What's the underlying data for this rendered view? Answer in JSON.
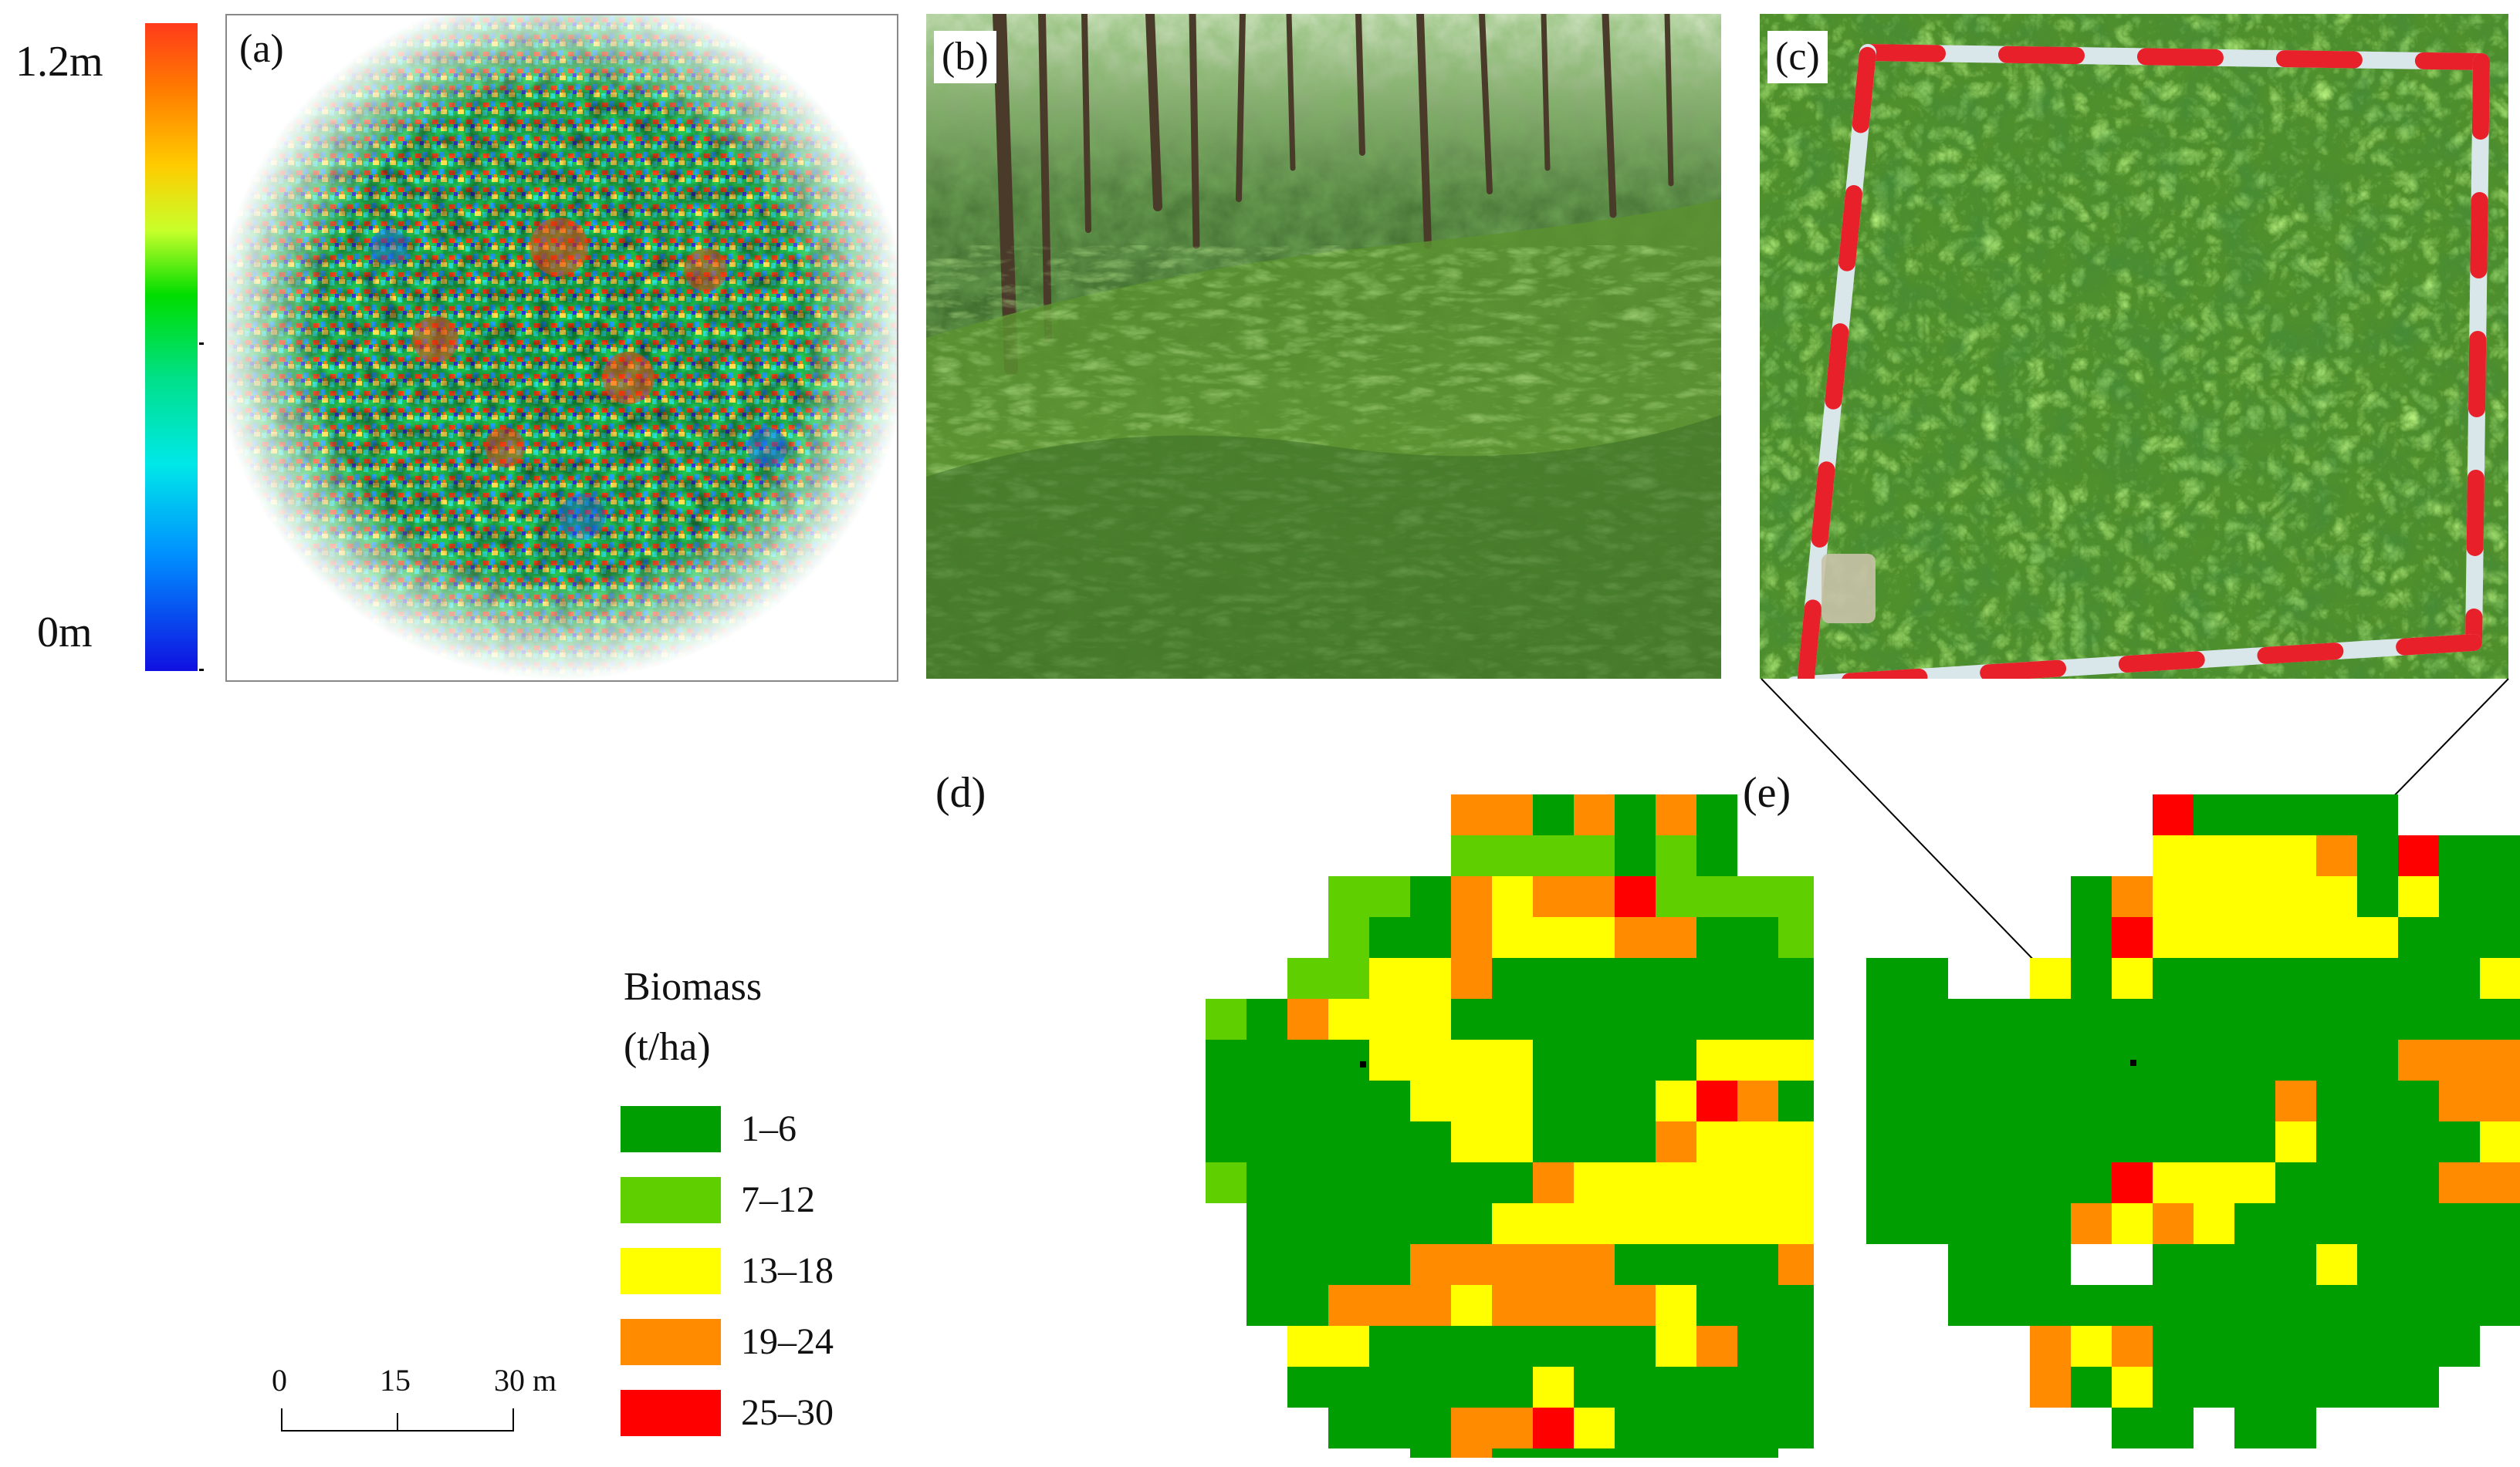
{
  "colorbar": {
    "top_label": "1.2m",
    "bottom_label": "0m"
  },
  "panels": {
    "a": "(a)",
    "b": "(b)",
    "c": "(c)",
    "d": "(d)",
    "e": "(e)"
  },
  "legend": {
    "title_line1": "Biomass",
    "title_line2": "(t/ha)",
    "classes": [
      {
        "label": "1–6",
        "color": "#009e00"
      },
      {
        "label": "7–12",
        "color": "#5fcf00"
      },
      {
        "label": "13–18",
        "color": "#ffff00"
      },
      {
        "label": "19–24",
        "color": "#ff8c00"
      },
      {
        "label": "25–30",
        "color": "#ff0000"
      }
    ]
  },
  "scalebar": {
    "ticks": [
      "0",
      "15",
      "30 m"
    ]
  },
  "colors": {
    "c1": "#009e00",
    "c2": "#5fcf00",
    "c3": "#ffff00",
    "c4": "#ff8c00",
    "c5": "#ff0000"
  },
  "grid_d": [
    "..........ooCoCoC..........",
    "..........ccccCcC..........",
    ".......ccCoyooRcccccc......",
    ".......cCCoyyyooCCcyyyc....",
    "......ccyyoCCCCCCCCyyyyc...",
    "....cCoyyyCCCCCCCCCyyyyc...",
    "....CCCCyyyyCCCCyyyCyyyR...",
    "....CCCCCyyyCCCyRoCCCyy....",
    "....CCCCCCyyCCCoyyyyCCCCyy.",
    "....cCCCCCCCoyyyyyyyCCRyy..",
    ".....CCCCCCyyyyyyyyyyyR....",
    ".....CCCCoooooCCCCooooy....",
    ".....CCoooyooooyCCCCCC.....",
    "......yyCCCCCCCyoCCCC......",
    "......CCCCCCyCCCCCCC.......",
    ".......CCCooRyCCCCCC.......",
    ".........CoCCCCCCC.........",
    ".........CC...CC..........."
  ],
  "grid_e": [
    ".........RCCCCC...........",
    ".........yyyyoCRCC........",
    ".......CoyyyyyCyCCC.......",
    ".......CRyyyyyyCCCCC......",
    "..CC..yCyCCCCCCCCyCC......",
    "..CCCCCCCCCCCCCCCCCCR.....",
    "..CCCCCCCCCCCCCoooCyC.....",
    "..CCCCCCCCCCoCCCooCCCy....",
    "..CCCCCCCCCCyCCCCyyCCRy...",
    "..CCCCCCRyyyCCCCooyCCy....",
    "..CCCCCoyoyCCCCCCCCC......",
    "....CCC..CCCCyCCCCC.......",
    "....CCCCCCCCCCCCCCCC......",
    "......oyoCCCCCCCC.........",
    "......oCyCCCCCCC..........",
    "........CC.CC............."
  ]
}
